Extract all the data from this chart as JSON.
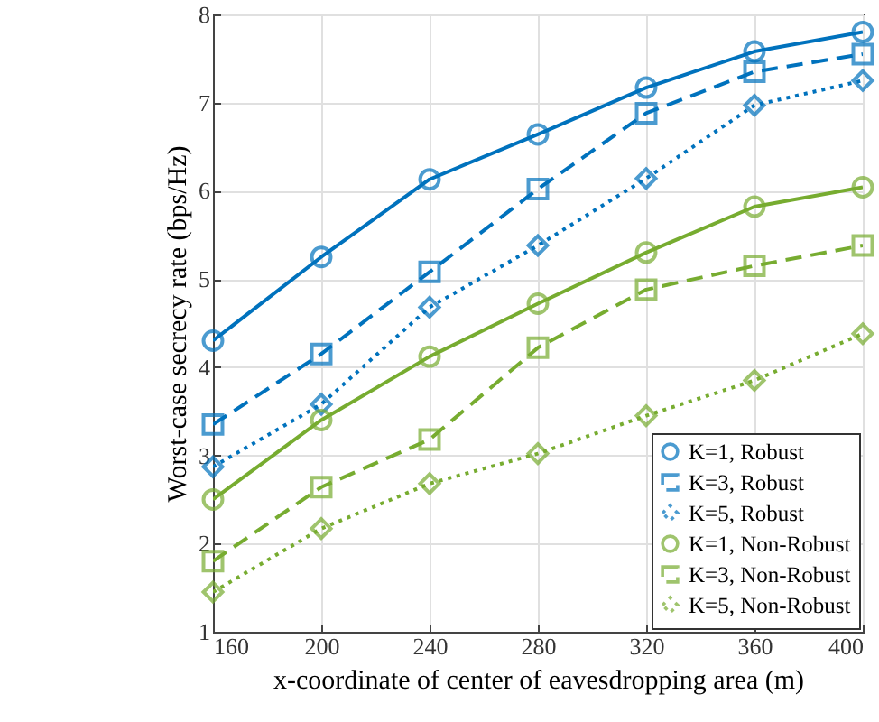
{
  "chart_data": {
    "type": "line",
    "xlabel": "x-coordinate of center of eavesdropping area (m)",
    "ylabel": "Worst-case secrecy rate  (bps/Hz)",
    "x": [
      160,
      200,
      240,
      280,
      320,
      360,
      400
    ],
    "xlim": [
      160,
      400
    ],
    "xticks": [
      160,
      200,
      240,
      280,
      320,
      360,
      400
    ],
    "ylim": [
      1,
      8
    ],
    "yticks": [
      1,
      2,
      3,
      4,
      5,
      6,
      7,
      8
    ],
    "grid": true,
    "legend": "bottom right",
    "series": [
      {
        "name": "K=1, Robust",
        "color": "#0072bd",
        "marker": "circle",
        "line_style": "solid",
        "values": [
          4.3,
          5.25,
          6.13,
          6.64,
          7.17,
          7.58,
          7.8
        ]
      },
      {
        "name": "K=3, Robust",
        "color": "#0072bd",
        "marker": "square",
        "line_style": "dashed",
        "values": [
          3.35,
          4.15,
          5.08,
          6.02,
          6.88,
          7.35,
          7.55
        ]
      },
      {
        "name": "K=5, Robust",
        "color": "#0072bd",
        "marker": "diamond",
        "line_style": "dotted",
        "values": [
          2.87,
          3.58,
          4.68,
          5.38,
          6.14,
          6.97,
          7.25
        ]
      },
      {
        "name": "K=1, Non-Robust",
        "color": "#77ac30",
        "marker": "circle",
        "line_style": "solid",
        "values": [
          2.5,
          3.4,
          4.12,
          4.72,
          5.3,
          5.82,
          6.04
        ]
      },
      {
        "name": "K=3, Non-Robust",
        "color": "#77ac30",
        "marker": "square",
        "line_style": "dashed",
        "values": [
          1.8,
          2.64,
          3.18,
          4.22,
          4.88,
          5.15,
          5.38
        ]
      },
      {
        "name": "K=5, Non-Robust",
        "color": "#77ac30",
        "marker": "diamond",
        "line_style": "dotted",
        "values": [
          1.45,
          2.17,
          2.68,
          3.02,
          3.45,
          3.85,
          4.38
        ]
      }
    ]
  }
}
